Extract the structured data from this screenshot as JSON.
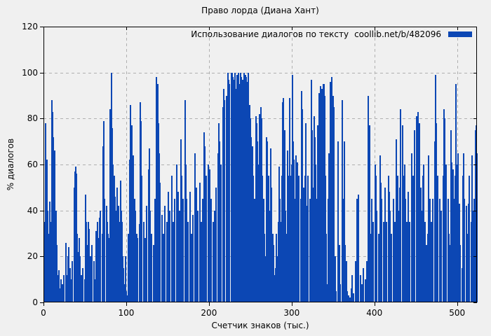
{
  "chart": {
    "title": "Право лорда (Диана Хант)",
    "legend": {
      "label": "Использование диалогов по тексту",
      "source": "coollib.net/b/482096"
    },
    "x_axis": {
      "label": "Счетчик знаков (тыс.)",
      "ticks": [
        0,
        100,
        200,
        300,
        400,
        500
      ]
    },
    "y_axis": {
      "label": "% диалогов",
      "ticks": [
        0,
        20,
        40,
        60,
        80,
        100,
        120
      ]
    },
    "colors": {
      "bar": "#0c47b4",
      "background": "#f0f0f0",
      "grid": "#b0b0b0",
      "axis": "#000000",
      "text": "#000000"
    }
  },
  "chart_data": {
    "type": "bar",
    "title": "Право лорда (Диана Хант)",
    "xlabel": "Счетчик знаков (тыс.)",
    "ylabel": "% диалогов",
    "xlim": [
      0,
      524
    ],
    "ylim": [
      0,
      120
    ],
    "grid": "dashed, both axes at major ticks",
    "legend_position": "top-right inside plot",
    "series_name": "Использование диалогов по тексту coollib.net/b/482096",
    "points": [
      [
        0,
        26
      ],
      [
        1,
        35
      ],
      [
        2,
        78
      ],
      [
        3,
        62
      ],
      [
        4,
        40
      ],
      [
        5,
        30
      ],
      [
        6,
        28
      ],
      [
        7,
        44
      ],
      [
        8,
        35
      ],
      [
        9,
        88
      ],
      [
        10,
        83
      ],
      [
        11,
        72
      ],
      [
        12,
        45
      ],
      [
        13,
        66
      ],
      [
        14,
        40
      ],
      [
        15,
        25
      ],
      [
        16,
        12
      ],
      [
        17,
        8
      ],
      [
        18,
        14
      ],
      [
        19,
        6
      ],
      [
        20,
        10
      ],
      [
        22,
        8
      ],
      [
        24,
        12
      ],
      [
        26,
        26
      ],
      [
        28,
        12
      ],
      [
        29,
        20
      ],
      [
        30,
        24
      ],
      [
        31,
        15
      ],
      [
        32,
        10
      ],
      [
        34,
        18
      ],
      [
        36,
        50
      ],
      [
        37,
        57
      ],
      [
        38,
        59
      ],
      [
        39,
        56
      ],
      [
        40,
        30
      ],
      [
        41,
        22
      ],
      [
        42,
        28
      ],
      [
        43,
        20
      ],
      [
        45,
        12
      ],
      [
        46,
        8
      ],
      [
        47,
        15
      ],
      [
        49,
        10
      ],
      [
        50,
        47
      ],
      [
        51,
        35
      ],
      [
        52,
        25
      ],
      [
        53,
        35
      ],
      [
        54,
        32
      ],
      [
        56,
        20
      ],
      [
        57,
        12
      ],
      [
        58,
        25
      ],
      [
        60,
        18
      ],
      [
        61,
        10
      ],
      [
        63,
        31
      ],
      [
        64,
        35
      ],
      [
        65,
        28
      ],
      [
        67,
        37
      ],
      [
        68,
        40
      ],
      [
        70,
        30
      ],
      [
        71,
        68
      ],
      [
        72,
        79
      ],
      [
        73,
        45
      ],
      [
        75,
        42
      ],
      [
        76,
        35
      ],
      [
        77,
        30
      ],
      [
        78,
        28
      ],
      [
        80,
        84
      ],
      [
        81,
        100
      ],
      [
        82,
        76
      ],
      [
        83,
        60
      ],
      [
        85,
        55
      ],
      [
        86,
        46
      ],
      [
        87,
        40
      ],
      [
        88,
        50
      ],
      [
        90,
        42
      ],
      [
        91,
        35
      ],
      [
        92,
        53
      ],
      [
        93,
        40
      ],
      [
        94,
        35
      ],
      [
        95,
        20
      ],
      [
        96,
        15
      ],
      [
        97,
        8
      ],
      [
        98,
        20
      ],
      [
        99,
        5
      ],
      [
        100,
        3
      ],
      [
        102,
        30
      ],
      [
        103,
        62
      ],
      [
        104,
        86
      ],
      [
        105,
        60
      ],
      [
        106,
        77
      ],
      [
        107,
        55
      ],
      [
        108,
        64
      ],
      [
        109,
        45
      ],
      [
        110,
        40
      ],
      [
        112,
        30
      ],
      [
        113,
        28
      ],
      [
        115,
        34
      ],
      [
        116,
        87
      ],
      [
        117,
        79
      ],
      [
        118,
        55
      ],
      [
        120,
        35
      ],
      [
        122,
        28
      ],
      [
        124,
        42
      ],
      [
        126,
        58
      ],
      [
        127,
        67
      ],
      [
        128,
        40
      ],
      [
        130,
        30
      ],
      [
        132,
        25
      ],
      [
        134,
        45
      ],
      [
        136,
        98
      ],
      [
        137,
        95
      ],
      [
        138,
        78
      ],
      [
        139,
        65
      ],
      [
        140,
        52
      ],
      [
        142,
        38
      ],
      [
        144,
        30
      ],
      [
        146,
        42
      ],
      [
        148,
        35
      ],
      [
        150,
        48
      ],
      [
        152,
        40
      ],
      [
        154,
        55
      ],
      [
        156,
        35
      ],
      [
        158,
        45
      ],
      [
        160,
        60
      ],
      [
        162,
        48
      ],
      [
        164,
        40
      ],
      [
        165,
        71
      ],
      [
        166,
        55
      ],
      [
        168,
        45
      ],
      [
        170,
        88
      ],
      [
        171,
        60
      ],
      [
        172,
        45
      ],
      [
        174,
        35
      ],
      [
        176,
        48
      ],
      [
        178,
        30
      ],
      [
        180,
        38
      ],
      [
        182,
        65
      ],
      [
        184,
        50
      ],
      [
        186,
        40
      ],
      [
        188,
        52
      ],
      [
        190,
        35
      ],
      [
        192,
        45
      ],
      [
        193,
        74
      ],
      [
        194,
        68
      ],
      [
        196,
        55
      ],
      [
        198,
        60
      ],
      [
        200,
        58
      ],
      [
        202,
        45
      ],
      [
        204,
        35
      ],
      [
        205,
        20
      ],
      [
        206,
        40
      ],
      [
        208,
        50
      ],
      [
        210,
        65
      ],
      [
        211,
        78
      ],
      [
        212,
        70
      ],
      [
        214,
        60
      ],
      [
        216,
        85
      ],
      [
        217,
        93
      ],
      [
        218,
        88
      ],
      [
        220,
        90
      ],
      [
        222,
        100
      ],
      [
        223,
        97
      ],
      [
        224,
        95
      ],
      [
        226,
        100
      ],
      [
        227,
        100
      ],
      [
        228,
        98
      ],
      [
        229,
        95
      ],
      [
        230,
        97
      ],
      [
        231,
        100
      ],
      [
        232,
        93
      ],
      [
        233,
        99
      ],
      [
        234,
        97
      ],
      [
        235,
        100
      ],
      [
        236,
        95
      ],
      [
        237,
        100
      ],
      [
        238,
        98
      ],
      [
        239,
        88
      ],
      [
        240,
        97
      ],
      [
        241,
        93
      ],
      [
        242,
        100
      ],
      [
        243,
        99
      ],
      [
        244,
        98
      ],
      [
        245,
        88
      ],
      [
        246,
        96
      ],
      [
        247,
        100
      ],
      [
        248,
        86
      ],
      [
        249,
        80
      ],
      [
        250,
        72
      ],
      [
        251,
        60
      ],
      [
        252,
        68
      ],
      [
        253,
        55
      ],
      [
        254,
        45
      ],
      [
        255,
        35
      ],
      [
        256,
        81
      ],
      [
        257,
        78
      ],
      [
        258,
        70
      ],
      [
        259,
        60
      ],
      [
        260,
        82
      ],
      [
        261,
        65
      ],
      [
        262,
        85
      ],
      [
        263,
        80
      ],
      [
        264,
        55
      ],
      [
        265,
        45
      ],
      [
        266,
        30
      ],
      [
        267,
        5
      ],
      [
        268,
        20
      ],
      [
        269,
        72
      ],
      [
        270,
        70
      ],
      [
        271,
        55
      ],
      [
        272,
        40
      ],
      [
        273,
        25
      ],
      [
        274,
        67
      ],
      [
        275,
        50
      ],
      [
        276,
        30
      ],
      [
        277,
        25
      ],
      [
        278,
        12
      ],
      [
        279,
        8
      ],
      [
        280,
        15
      ],
      [
        281,
        30
      ],
      [
        282,
        20
      ],
      [
        283,
        35
      ],
      [
        284,
        59
      ],
      [
        285,
        45
      ],
      [
        286,
        35
      ],
      [
        287,
        55
      ],
      [
        288,
        87
      ],
      [
        289,
        89
      ],
      [
        290,
        60
      ],
      [
        291,
        75
      ],
      [
        292,
        40
      ],
      [
        293,
        30
      ],
      [
        294,
        66
      ],
      [
        295,
        45
      ],
      [
        296,
        55
      ],
      [
        297,
        89
      ],
      [
        298,
        55
      ],
      [
        299,
        60
      ],
      [
        300,
        99
      ],
      [
        301,
        70
      ],
      [
        302,
        62
      ],
      [
        303,
        45
      ],
      [
        304,
        64
      ],
      [
        306,
        61
      ],
      [
        307,
        45
      ],
      [
        308,
        55
      ],
      [
        310,
        45
      ],
      [
        311,
        92
      ],
      [
        312,
        84
      ],
      [
        314,
        50
      ],
      [
        315,
        55
      ],
      [
        316,
        78
      ],
      [
        317,
        35
      ],
      [
        318,
        42
      ],
      [
        319,
        55
      ],
      [
        321,
        45
      ],
      [
        323,
        97
      ],
      [
        324,
        75
      ],
      [
        325,
        50
      ],
      [
        326,
        81
      ],
      [
        327,
        72
      ],
      [
        328,
        60
      ],
      [
        330,
        45
      ],
      [
        331,
        77
      ],
      [
        332,
        91
      ],
      [
        334,
        94
      ],
      [
        335,
        55
      ],
      [
        336,
        93
      ],
      [
        337,
        95
      ],
      [
        338,
        95
      ],
      [
        339,
        90
      ],
      [
        340,
        55
      ],
      [
        341,
        30
      ],
      [
        342,
        8
      ],
      [
        343,
        45
      ],
      [
        344,
        65
      ],
      [
        345,
        35
      ],
      [
        346,
        96
      ],
      [
        347,
        88
      ],
      [
        348,
        98
      ],
      [
        349,
        90
      ],
      [
        350,
        85
      ],
      [
        351,
        10
      ],
      [
        352,
        20
      ],
      [
        353,
        5
      ],
      [
        355,
        70
      ],
      [
        356,
        12
      ],
      [
        357,
        25
      ],
      [
        358,
        8
      ],
      [
        360,
        88
      ],
      [
        361,
        45
      ],
      [
        362,
        30
      ],
      [
        363,
        70
      ],
      [
        364,
        25
      ],
      [
        365,
        18
      ],
      [
        366,
        5
      ],
      [
        368,
        3
      ],
      [
        370,
        2
      ],
      [
        371,
        6
      ],
      [
        372,
        12
      ],
      [
        374,
        4
      ],
      [
        376,
        18
      ],
      [
        378,
        45
      ],
      [
        380,
        47
      ],
      [
        382,
        12
      ],
      [
        384,
        8
      ],
      [
        386,
        15
      ],
      [
        388,
        10
      ],
      [
        390,
        18
      ],
      [
        392,
        90
      ],
      [
        393,
        77
      ],
      [
        395,
        30
      ],
      [
        396,
        45
      ],
      [
        398,
        35
      ],
      [
        400,
        60
      ],
      [
        401,
        55
      ],
      [
        402,
        40
      ],
      [
        404,
        30
      ],
      [
        406,
        64
      ],
      [
        407,
        52
      ],
      [
        408,
        45
      ],
      [
        410,
        35
      ],
      [
        412,
        50
      ],
      [
        414,
        35
      ],
      [
        416,
        55
      ],
      [
        417,
        48
      ],
      [
        418,
        40
      ],
      [
        420,
        30
      ],
      [
        422,
        45
      ],
      [
        423,
        15
      ],
      [
        424,
        35
      ],
      [
        426,
        71
      ],
      [
        427,
        55
      ],
      [
        428,
        40
      ],
      [
        430,
        50
      ],
      [
        431,
        84
      ],
      [
        433,
        77
      ],
      [
        434,
        55
      ],
      [
        436,
        60
      ],
      [
        437,
        45
      ],
      [
        438,
        35
      ],
      [
        440,
        48
      ],
      [
        441,
        20
      ],
      [
        442,
        35
      ],
      [
        444,
        65
      ],
      [
        446,
        55
      ],
      [
        448,
        75
      ],
      [
        450,
        81
      ],
      [
        452,
        83
      ],
      [
        453,
        70
      ],
      [
        454,
        78
      ],
      [
        455,
        50
      ],
      [
        456,
        40
      ],
      [
        457,
        29
      ],
      [
        458,
        55
      ],
      [
        459,
        60
      ],
      [
        460,
        35
      ],
      [
        462,
        25
      ],
      [
        464,
        30
      ],
      [
        465,
        64
      ],
      [
        466,
        45
      ],
      [
        468,
        35
      ],
      [
        470,
        45
      ],
      [
        472,
        70
      ],
      [
        473,
        99
      ],
      [
        474,
        78
      ],
      [
        476,
        55
      ],
      [
        478,
        45
      ],
      [
        480,
        40
      ],
      [
        482,
        55
      ],
      [
        483,
        84
      ],
      [
        484,
        80
      ],
      [
        486,
        60
      ],
      [
        488,
        45
      ],
      [
        489,
        30
      ],
      [
        490,
        25
      ],
      [
        492,
        75
      ],
      [
        493,
        61
      ],
      [
        494,
        58
      ],
      [
        496,
        45
      ],
      [
        497,
        55
      ],
      [
        498,
        95
      ],
      [
        499,
        60
      ],
      [
        500,
        65
      ],
      [
        502,
        43
      ],
      [
        503,
        25
      ],
      [
        505,
        15
      ],
      [
        506,
        55
      ],
      [
        507,
        65
      ],
      [
        508,
        45
      ],
      [
        510,
        42
      ],
      [
        511,
        30
      ],
      [
        512,
        20
      ],
      [
        513,
        43
      ],
      [
        514,
        55
      ],
      [
        516,
        35
      ],
      [
        517,
        64
      ],
      [
        518,
        35
      ],
      [
        519,
        40
      ],
      [
        520,
        45
      ],
      [
        521,
        75
      ],
      [
        522,
        77
      ],
      [
        523,
        65
      ]
    ]
  }
}
